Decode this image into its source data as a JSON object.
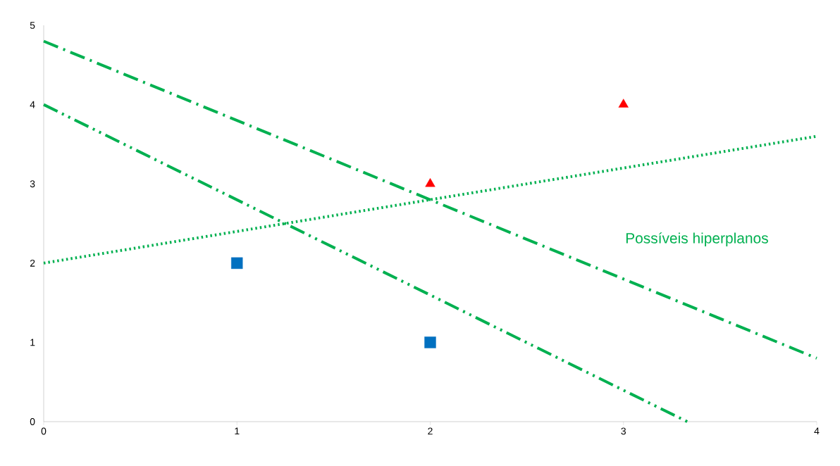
{
  "chart_data": {
    "type": "scatter",
    "xlim": [
      0,
      4
    ],
    "ylim": [
      0,
      5
    ],
    "xticks": [
      0,
      1,
      2,
      3,
      4
    ],
    "yticks": [
      0,
      1,
      2,
      3,
      4,
      5
    ],
    "grid": false,
    "series": [
      {
        "color": "#0070c0",
        "marker": "square",
        "x": [
          1,
          2
        ],
        "values": [
          2,
          1
        ]
      },
      {
        "color": "#ff0000",
        "marker": "triangle",
        "x": [
          2,
          3
        ],
        "values": [
          3,
          4
        ]
      },
      {
        "type": "line",
        "color": "#00b050",
        "line_style": "dashdot",
        "x": [
          0,
          4
        ],
        "values": [
          4.8,
          0.8
        ]
      },
      {
        "type": "line",
        "color": "#00b050",
        "line_style": "dashdotdot",
        "x": [
          0,
          3.33
        ],
        "values": [
          4,
          0
        ]
      },
      {
        "type": "line",
        "color": "#00b050",
        "line_style": "dotted",
        "x": [
          0,
          4
        ],
        "values": [
          2,
          3.6
        ]
      }
    ],
    "annotations": [
      "Possíveis hiperplanos"
    ]
  }
}
